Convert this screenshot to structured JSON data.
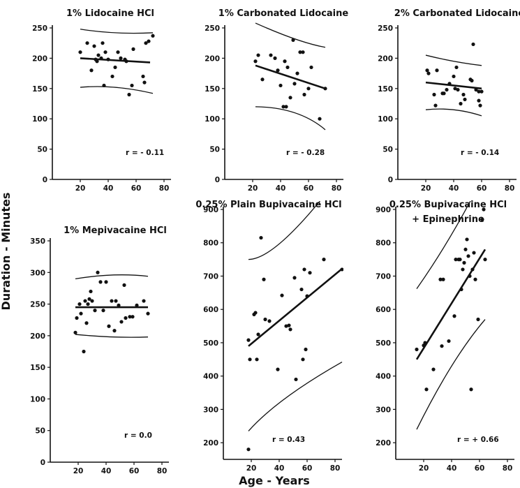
{
  "figure": {
    "ylabel": "Duration - Minutes",
    "xlabel": "Age - Years"
  },
  "chart_data": [
    {
      "type": "scatter",
      "title": "1% Lidocaine HCl",
      "r_label": "r = - 0.11",
      "xlim": [
        0,
        85
      ],
      "ylim": [
        0,
        250
      ],
      "xticks": [
        20,
        40,
        60,
        80
      ],
      "yticks": [
        0,
        50,
        100,
        150,
        200,
        250
      ],
      "points": [
        [
          20,
          210
        ],
        [
          25,
          225
        ],
        [
          28,
          180
        ],
        [
          30,
          220
        ],
        [
          31,
          198
        ],
        [
          32,
          195
        ],
        [
          33,
          205
        ],
        [
          35,
          200
        ],
        [
          36,
          225
        ],
        [
          37,
          155
        ],
        [
          38,
          210
        ],
        [
          40,
          198
        ],
        [
          43,
          170
        ],
        [
          45,
          185
        ],
        [
          47,
          210
        ],
        [
          49,
          200
        ],
        [
          52,
          198
        ],
        [
          53,
          195
        ],
        [
          55,
          140
        ],
        [
          57,
          155
        ],
        [
          58,
          215
        ],
        [
          65,
          170
        ],
        [
          66,
          160
        ],
        [
          67,
          225
        ],
        [
          69,
          228
        ],
        [
          72,
          237
        ]
      ],
      "fit": [
        [
          20,
          200
        ],
        [
          70,
          193
        ]
      ],
      "upper": [
        [
          20,
          248
        ],
        [
          45,
          242
        ],
        [
          72,
          242
        ]
      ],
      "lower": [
        [
          20,
          152
        ],
        [
          45,
          152
        ],
        [
          72,
          142
        ]
      ]
    },
    {
      "type": "scatter",
      "title": "1% Carbonated Lidocaine",
      "r_label": "r = - 0.28",
      "xlim": [
        0,
        85
      ],
      "ylim": [
        0,
        250
      ],
      "xticks": [
        20,
        40,
        60,
        80
      ],
      "yticks": [
        0,
        50,
        100,
        150,
        200,
        250
      ],
      "points": [
        [
          22,
          195
        ],
        [
          24,
          205
        ],
        [
          27,
          165
        ],
        [
          33,
          205
        ],
        [
          36,
          200
        ],
        [
          38,
          180
        ],
        [
          40,
          155
        ],
        [
          42,
          120
        ],
        [
          43,
          195
        ],
        [
          44,
          120
        ],
        [
          45,
          185
        ],
        [
          47,
          135
        ],
        [
          49,
          230
        ],
        [
          50,
          158
        ],
        [
          52,
          175
        ],
        [
          54,
          210
        ],
        [
          56,
          210
        ],
        [
          57,
          140
        ],
        [
          60,
          150
        ],
        [
          62,
          185
        ],
        [
          68,
          100
        ],
        [
          72,
          150
        ]
      ],
      "fit": [
        [
          22,
          188
        ],
        [
          72,
          150
        ]
      ],
      "upper": [
        [
          22,
          258
        ],
        [
          50,
          232
        ],
        [
          72,
          218
        ]
      ],
      "lower": [
        [
          22,
          120
        ],
        [
          50,
          110
        ],
        [
          72,
          82
        ]
      ]
    },
    {
      "type": "scatter",
      "title": "2% Carbonated Lidocaine",
      "r_label": "r = - 0.14",
      "xlim": [
        0,
        85
      ],
      "ylim": [
        0,
        250
      ],
      "xticks": [
        20,
        40,
        60,
        80
      ],
      "yticks": [
        0,
        50,
        100,
        150,
        200,
        250
      ],
      "points": [
        [
          21,
          180
        ],
        [
          22,
          175
        ],
        [
          26,
          140
        ],
        [
          27,
          122
        ],
        [
          28,
          180
        ],
        [
          32,
          142
        ],
        [
          33,
          142
        ],
        [
          35,
          148
        ],
        [
          37,
          158
        ],
        [
          40,
          170
        ],
        [
          41,
          150
        ],
        [
          42,
          185
        ],
        [
          43,
          148
        ],
        [
          45,
          125
        ],
        [
          47,
          140
        ],
        [
          48,
          132
        ],
        [
          52,
          165
        ],
        [
          53,
          163
        ],
        [
          54,
          223
        ],
        [
          56,
          148
        ],
        [
          58,
          145
        ],
        [
          58,
          130
        ],
        [
          59,
          122
        ],
        [
          60,
          145
        ]
      ],
      "fit": [
        [
          20,
          160
        ],
        [
          60,
          150
        ]
      ],
      "upper": [
        [
          20,
          205
        ],
        [
          40,
          195
        ],
        [
          60,
          188
        ]
      ],
      "lower": [
        [
          20,
          115
        ],
        [
          40,
          115
        ],
        [
          60,
          105
        ]
      ]
    },
    {
      "type": "scatter",
      "title": "1% Mepivacaine HCl",
      "r_label": "r = 0.0",
      "xlim": [
        0,
        85
      ],
      "ylim": [
        0,
        350
      ],
      "xticks": [
        20,
        40,
        60,
        80
      ],
      "yticks": [
        0,
        50,
        100,
        150,
        200,
        250,
        300,
        350
      ],
      "points": [
        [
          18,
          205
        ],
        [
          19,
          228
        ],
        [
          21,
          250
        ],
        [
          22,
          235
        ],
        [
          24,
          175
        ],
        [
          25,
          255
        ],
        [
          26,
          220
        ],
        [
          27,
          250
        ],
        [
          28,
          258
        ],
        [
          29,
          270
        ],
        [
          30,
          255
        ],
        [
          32,
          240
        ],
        [
          34,
          300
        ],
        [
          36,
          285
        ],
        [
          38,
          240
        ],
        [
          40,
          285
        ],
        [
          42,
          215
        ],
        [
          44,
          255
        ],
        [
          46,
          208
        ],
        [
          47,
          255
        ],
        [
          49,
          248
        ],
        [
          51,
          222
        ],
        [
          53,
          280
        ],
        [
          54,
          228
        ],
        [
          57,
          230
        ],
        [
          59,
          230
        ],
        [
          62,
          248
        ],
        [
          67,
          255
        ],
        [
          70,
          235
        ]
      ],
      "fit": [
        [
          18,
          245
        ],
        [
          70,
          245
        ]
      ],
      "upper": [
        [
          18,
          290
        ],
        [
          45,
          296
        ],
        [
          70,
          294
        ]
      ],
      "lower": [
        [
          18,
          202
        ],
        [
          45,
          198
        ],
        [
          70,
          198
        ]
      ]
    },
    {
      "type": "scatter",
      "title": "0.25% Plain Bupivacaine HCl",
      "r_label": "r = 0.43",
      "xlim": [
        0,
        85
      ],
      "ylim": [
        150,
        900
      ],
      "xticks": [
        20,
        40,
        60,
        80
      ],
      "yticks": [
        200,
        300,
        400,
        500,
        600,
        700,
        800,
        900
      ],
      "points": [
        [
          18,
          180
        ],
        [
          18,
          508
        ],
        [
          19,
          450
        ],
        [
          22,
          585
        ],
        [
          23,
          590
        ],
        [
          24,
          450
        ],
        [
          25,
          525
        ],
        [
          27,
          815
        ],
        [
          29,
          690
        ],
        [
          30,
          570
        ],
        [
          33,
          565
        ],
        [
          39,
          420
        ],
        [
          42,
          642
        ],
        [
          45,
          550
        ],
        [
          47,
          552
        ],
        [
          48,
          540
        ],
        [
          51,
          695
        ],
        [
          52,
          390
        ],
        [
          56,
          660
        ],
        [
          57,
          450
        ],
        [
          58,
          720
        ],
        [
          59,
          480
        ],
        [
          60,
          640
        ],
        [
          62,
          710
        ],
        [
          72,
          750
        ],
        [
          85,
          720
        ]
      ],
      "fit": [
        [
          18,
          490
        ],
        [
          85,
          722
        ]
      ],
      "upper": [
        [
          18,
          750
        ],
        [
          45,
          815
        ],
        [
          85,
          1010
        ]
      ],
      "lower": [
        [
          18,
          235
        ],
        [
          45,
          335
        ],
        [
          85,
          442
        ]
      ]
    },
    {
      "type": "scatter",
      "title": "0.25% Bupivacaine HCl",
      "subtitle": "+ Epinephrine",
      "r_label": "r = + 0.66",
      "xlim": [
        0,
        85
      ],
      "ylim": [
        150,
        900
      ],
      "xticks": [
        20,
        40,
        60,
        80
      ],
      "yticks": [
        200,
        300,
        400,
        500,
        600,
        700,
        800,
        900
      ],
      "points": [
        [
          15,
          480
        ],
        [
          20,
          492
        ],
        [
          21,
          500
        ],
        [
          22,
          360
        ],
        [
          27,
          420
        ],
        [
          32,
          690
        ],
        [
          33,
          490
        ],
        [
          34,
          690
        ],
        [
          38,
          505
        ],
        [
          42,
          580
        ],
        [
          43,
          750
        ],
        [
          45,
          750
        ],
        [
          46,
          750
        ],
        [
          47,
          660
        ],
        [
          48,
          720
        ],
        [
          49,
          740
        ],
        [
          50,
          780
        ],
        [
          51,
          810
        ],
        [
          52,
          760
        ],
        [
          53,
          700
        ],
        [
          54,
          360
        ],
        [
          55,
          720
        ],
        [
          56,
          770
        ],
        [
          57,
          690
        ],
        [
          59,
          570
        ],
        [
          62,
          870
        ],
        [
          63,
          900
        ],
        [
          64,
          750
        ]
      ],
      "fit": [
        [
          15,
          450
        ],
        [
          64,
          780
        ]
      ],
      "upper": [
        [
          15,
          662
        ],
        [
          40,
          825
        ],
        [
          64,
          1010
        ]
      ],
      "lower": [
        [
          15,
          240
        ],
        [
          40,
          430
        ],
        [
          64,
          570
        ]
      ]
    }
  ]
}
